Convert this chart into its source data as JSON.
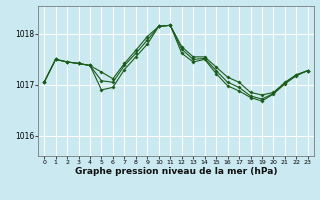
{
  "title": "Graphe pression niveau de la mer (hPa)",
  "background_color": "#cbe9f0",
  "grid_color": "#ffffff",
  "line_color": "#1a5c1a",
  "xlim": [
    -0.5,
    23.5
  ],
  "ylim": [
    1015.6,
    1018.55
  ],
  "yticks": [
    1016,
    1017,
    1018
  ],
  "xticks": [
    0,
    1,
    2,
    3,
    4,
    5,
    6,
    7,
    8,
    9,
    10,
    11,
    12,
    13,
    14,
    15,
    16,
    17,
    18,
    19,
    20,
    21,
    22,
    23
  ],
  "series": [
    {
      "x": [
        0,
        1,
        2,
        3,
        4,
        5,
        6,
        7,
        8,
        9,
        10,
        11,
        12,
        13,
        14,
        15,
        16,
        17,
        18,
        19,
        20,
        21,
        22,
        23
      ],
      "y": [
        1017.05,
        1017.5,
        1017.45,
        1017.42,
        1017.38,
        1017.25,
        1017.12,
        1017.42,
        1017.68,
        1017.95,
        1018.15,
        1018.17,
        1017.75,
        1017.55,
        1017.55,
        1017.35,
        1017.15,
        1017.05,
        1016.85,
        1016.8,
        1016.85,
        1017.05,
        1017.2,
        1017.28
      ]
    },
    {
      "x": [
        0,
        1,
        2,
        3,
        4,
        5,
        6,
        7,
        8,
        9,
        10,
        11,
        12,
        13,
        14,
        15,
        16,
        17,
        18,
        19,
        20,
        21,
        22,
        23
      ],
      "y": [
        1017.05,
        1017.5,
        1017.45,
        1017.42,
        1017.38,
        1016.9,
        1016.95,
        1017.3,
        1017.55,
        1017.8,
        1018.15,
        1018.17,
        1017.62,
        1017.45,
        1017.5,
        1017.22,
        1016.98,
        1016.88,
        1016.75,
        1016.68,
        1016.82,
        1017.02,
        1017.18,
        1017.28
      ]
    },
    {
      "x": [
        0,
        1,
        2,
        3,
        4,
        5,
        6,
        7,
        8,
        9,
        10,
        11,
        12,
        13,
        14,
        15,
        16,
        17,
        18,
        19,
        20,
        21,
        22,
        23
      ],
      "y": [
        1017.05,
        1017.5,
        1017.45,
        1017.42,
        1017.38,
        1017.08,
        1017.05,
        1017.38,
        1017.62,
        1017.88,
        1018.15,
        1018.17,
        1017.7,
        1017.5,
        1017.52,
        1017.28,
        1017.05,
        1016.95,
        1016.78,
        1016.72,
        1016.83,
        1017.03,
        1017.19,
        1017.28
      ]
    }
  ]
}
